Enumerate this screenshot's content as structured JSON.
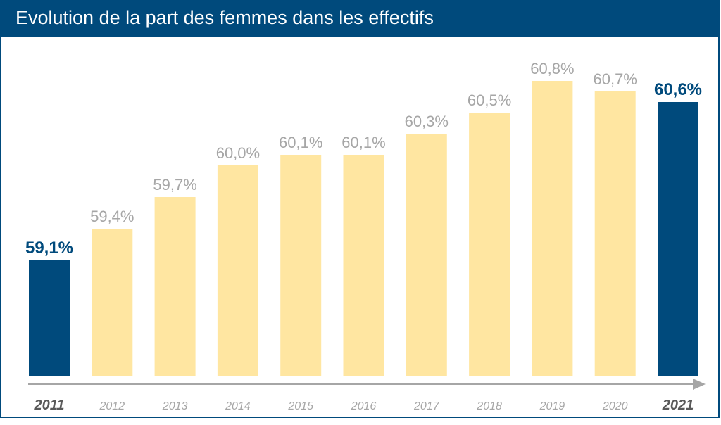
{
  "chart_data": {
    "type": "bar",
    "title": "Evolution de la part des femmes dans les effectifs",
    "categories": [
      "2011",
      "2012",
      "2013",
      "2014",
      "2015",
      "2016",
      "2017",
      "2018",
      "2019",
      "2020",
      "2021"
    ],
    "values": [
      59.1,
      59.4,
      59.7,
      60.0,
      60.1,
      60.1,
      60.3,
      60.5,
      60.8,
      60.7,
      60.6
    ],
    "value_labels": [
      "59,1%",
      "59,4%",
      "59,7%",
      "60,0%",
      "60,1%",
      "60,1%",
      "60,3%",
      "60,5%",
      "60,8%",
      "60,7%",
      "60,6%"
    ],
    "highlighted_categories": [
      "2011",
      "2021"
    ],
    "ylim": [
      58.0,
      60.95
    ],
    "grid": false,
    "legend": "none",
    "xlabel": "",
    "ylabel": "",
    "colors": {
      "title_background": "#004a7c",
      "highlight_bar": "#004a7c",
      "regular_bar": "#ffe6a1",
      "regular_label": "#a6a6a6",
      "highlight_label": "#004a7c",
      "highlight_year": "#595959",
      "axis_arrow": "#a6a6a6"
    }
  }
}
